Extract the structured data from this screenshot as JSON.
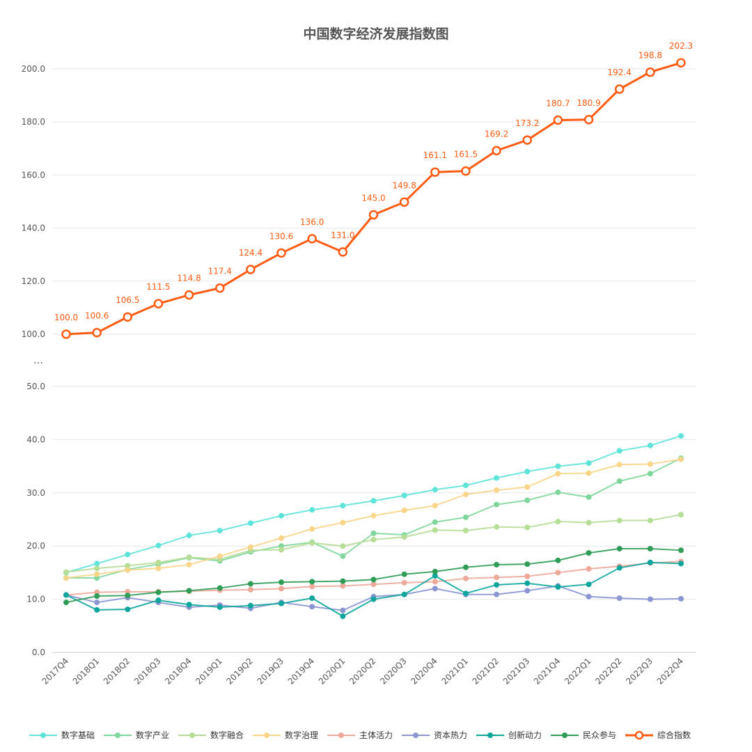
{
  "chart_data": {
    "type": "line",
    "title": "中国数字经济发展指数图",
    "y_axis": {
      "break_between": [
        50,
        100
      ],
      "break_marker": "…",
      "lower_ticks": [
        "0.0",
        "10.0",
        "20.0",
        "30.0",
        "40.0",
        "50.0"
      ],
      "upper_ticks": [
        "100.0",
        "120.0",
        "140.0",
        "160.0",
        "180.0",
        "200.0"
      ]
    },
    "grid": true,
    "legend_placement": "bottom",
    "categories": [
      "2017Q4",
      "2018Q1",
      "2018Q2",
      "2018Q3",
      "2018Q4",
      "2019Q1",
      "2019Q2",
      "2019Q3",
      "2019Q4",
      "2020Q1",
      "2020Q2",
      "2020Q3",
      "2020Q4",
      "2021Q1",
      "2021Q2",
      "2021Q3",
      "2021Q4",
      "2022Q1",
      "2022Q2",
      "2022Q3",
      "2022Q4"
    ],
    "series": [
      {
        "name": "数字基础",
        "color": "#5ee3d9",
        "values": [
          15.0,
          16.7,
          18.4,
          20.1,
          22.0,
          22.9,
          24.3,
          25.7,
          26.8,
          27.6,
          28.5,
          29.5,
          30.6,
          31.4,
          32.8,
          34.0,
          35.0,
          35.6,
          37.9,
          38.9,
          40.7
        ]
      },
      {
        "name": "数字产业",
        "color": "#7fd69c",
        "values": [
          14.0,
          14.0,
          15.6,
          16.6,
          17.8,
          17.2,
          18.9,
          20.0,
          20.7,
          18.1,
          22.4,
          22.1,
          24.5,
          25.4,
          27.8,
          28.6,
          30.1,
          29.2,
          32.2,
          33.6,
          36.5
        ]
      },
      {
        "name": "数字融合",
        "color": "#b6dd96",
        "values": [
          15.1,
          15.8,
          16.3,
          16.9,
          17.9,
          17.5,
          19.2,
          19.3,
          20.6,
          20.0,
          21.2,
          21.7,
          23.0,
          22.9,
          23.6,
          23.5,
          24.6,
          24.4,
          24.8,
          24.8,
          25.9
        ]
      },
      {
        "name": "数字治理",
        "color": "#f8d589",
        "values": [
          14.0,
          14.7,
          15.5,
          15.8,
          16.5,
          18.1,
          19.8,
          21.5,
          23.2,
          24.4,
          25.7,
          26.7,
          27.6,
          29.7,
          30.5,
          31.1,
          33.6,
          33.7,
          35.3,
          35.4,
          36.3
        ]
      },
      {
        "name": "主体活力",
        "color": "#eda99a",
        "values": [
          10.8,
          11.3,
          11.4,
          11.4,
          11.5,
          11.7,
          11.8,
          12.0,
          12.4,
          12.5,
          12.8,
          13.1,
          13.3,
          13.9,
          14.1,
          14.3,
          15.0,
          15.7,
          16.2,
          16.8,
          17.1
        ]
      },
      {
        "name": "资本热力",
        "color": "#8b95d0",
        "values": [
          10.8,
          9.4,
          10.3,
          9.4,
          8.5,
          8.9,
          8.3,
          9.4,
          8.6,
          7.9,
          10.5,
          10.9,
          12.0,
          10.9,
          10.9,
          11.6,
          12.5,
          10.5,
          10.2,
          10.0,
          10.1
        ]
      },
      {
        "name": "创新动力",
        "color": "#0ea69c",
        "values": [
          10.8,
          8.0,
          8.1,
          9.8,
          9.0,
          8.5,
          8.8,
          9.2,
          10.2,
          6.8,
          10.0,
          10.9,
          14.4,
          11.1,
          12.7,
          13.0,
          12.3,
          12.8,
          15.9,
          16.9,
          16.7
        ]
      },
      {
        "name": "民众参与",
        "color": "#2f9c58",
        "values": [
          9.4,
          10.6,
          10.7,
          11.3,
          11.6,
          12.1,
          12.9,
          13.2,
          13.3,
          13.4,
          13.7,
          14.7,
          15.2,
          16.0,
          16.5,
          16.6,
          17.3,
          18.7,
          19.5,
          19.5,
          19.2
        ]
      },
      {
        "name": "综合指数",
        "color": "#ff5b12",
        "labels": true,
        "values": [
          100.0,
          100.6,
          106.5,
          111.5,
          114.8,
          117.4,
          124.4,
          130.6,
          136.0,
          131.0,
          145.0,
          149.8,
          161.1,
          161.5,
          169.2,
          173.2,
          180.7,
          180.9,
          192.4,
          198.8,
          202.3
        ]
      }
    ]
  }
}
